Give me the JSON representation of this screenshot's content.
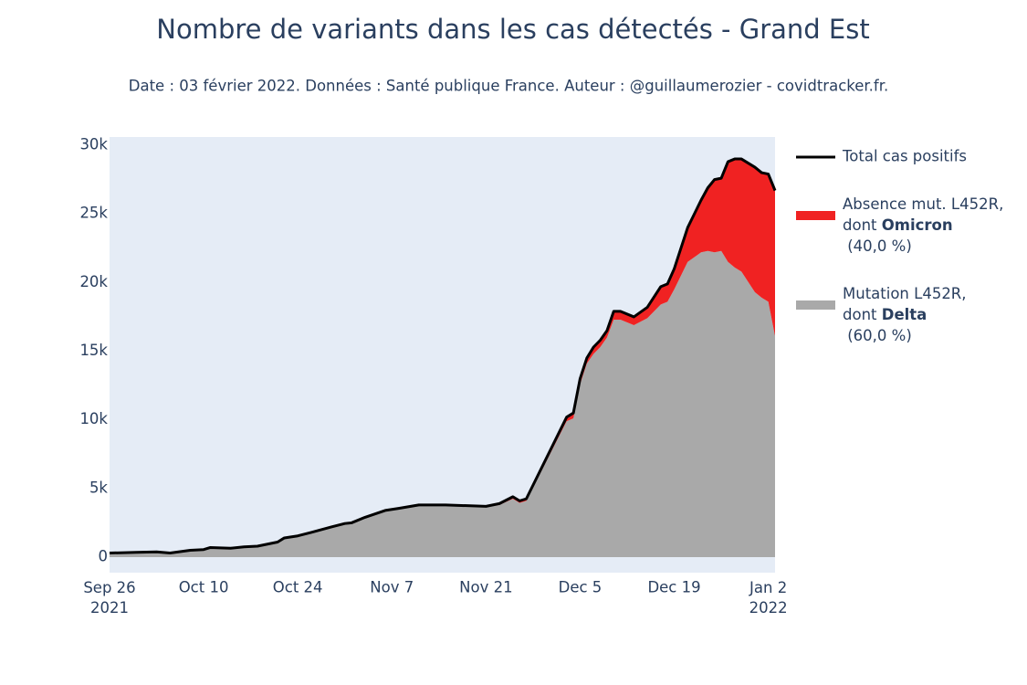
{
  "chart_data": {
    "type": "area",
    "title": "Nombre de variants dans les cas détectés - Grand Est",
    "subtitle": "Date : 03 février 2022. Données : Santé publique France. Auteur : @guillaumerozier - covidtracker.fr.",
    "x": [
      "2021-09-26",
      "2021-09-30",
      "2021-10-03",
      "2021-10-05",
      "2021-10-08",
      "2021-10-10",
      "2021-10-11",
      "2021-10-14",
      "2021-10-16",
      "2021-10-18",
      "2021-10-21",
      "2021-10-22",
      "2021-10-24",
      "2021-10-26",
      "2021-10-29",
      "2021-10-31",
      "2021-11-01",
      "2021-11-03",
      "2021-11-06",
      "2021-11-08",
      "2021-11-11",
      "2021-11-15",
      "2021-11-21",
      "2021-11-23",
      "2021-11-25",
      "2021-11-26",
      "2021-11-27",
      "2021-12-03",
      "2021-12-04",
      "2021-12-05",
      "2021-12-06",
      "2021-12-07",
      "2021-12-08",
      "2021-12-09",
      "2021-12-10",
      "2021-12-11",
      "2021-12-13",
      "2021-12-15",
      "2021-12-17",
      "2021-12-18",
      "2021-12-19",
      "2021-12-21",
      "2021-12-23",
      "2021-12-24",
      "2021-12-25",
      "2021-12-26",
      "2021-12-27",
      "2021-12-28",
      "2021-12-29",
      "2021-12-31",
      "2022-01-01",
      "2022-01-02",
      "2022-01-03"
    ],
    "series": [
      {
        "name": "Total cas positifs",
        "type": "line",
        "color": "#000000",
        "values": [
          300,
          350,
          380,
          300,
          500,
          550,
          700,
          650,
          750,
          800,
          1100,
          1400,
          1550,
          1800,
          2200,
          2450,
          2500,
          2900,
          3400,
          3550,
          3800,
          3800,
          3700,
          3900,
          4400,
          4100,
          4250,
          10200,
          10500,
          13000,
          14500,
          15300,
          15800,
          16500,
          17900,
          17900,
          17500,
          18200,
          19700,
          19900,
          21000,
          24000,
          26000,
          26900,
          27500,
          27600,
          28800,
          29000,
          29000,
          28400,
          28000,
          27900,
          26700
        ]
      },
      {
        "name": "Absence mut. L452R,<br>dont <b>Omicron</b><br> (40,0 %)",
        "type": "area",
        "color": "#f02222",
        "values": [
          0,
          0,
          0,
          0,
          0,
          0,
          0,
          0,
          0,
          0,
          0,
          0,
          0,
          0,
          0,
          0,
          0,
          0,
          0,
          0,
          0,
          0,
          50,
          100,
          150,
          150,
          150,
          300,
          400,
          400,
          400,
          500,
          500,
          500,
          600,
          600,
          600,
          800,
          1300,
          1300,
          1500,
          2500,
          3800,
          4600,
          5300,
          5300,
          7300,
          7900,
          8200,
          9100,
          9100,
          9300,
          10600
        ]
      },
      {
        "name": "Mutation L452R,<br>dont <b>Delta</b><br> (60,0 %)",
        "type": "area",
        "color": "#a9a9a9",
        "values": [
          300,
          350,
          380,
          300,
          500,
          550,
          700,
          650,
          750,
          800,
          1100,
          1400,
          1550,
          1800,
          2200,
          2450,
          2500,
          2900,
          3400,
          3550,
          3800,
          3800,
          3650,
          3800,
          4250,
          3950,
          4100,
          9900,
          10100,
          12600,
          14100,
          14800,
          15300,
          16000,
          17300,
          17300,
          16900,
          17400,
          18400,
          18600,
          19500,
          21500,
          22200,
          22300,
          22200,
          22300,
          21500,
          21100,
          20800,
          19300,
          18900,
          18600,
          16100
        ]
      }
    ],
    "xlim": [
      "2021-09-26",
      "2022-01-03"
    ],
    "xticks": [
      {
        "value": "2021-09-26",
        "label": "Sep 26<br>2021"
      },
      {
        "value": "2021-10-10",
        "label": "Oct 10"
      },
      {
        "value": "2021-10-24",
        "label": "Oct 24"
      },
      {
        "value": "2021-11-07",
        "label": "Nov 7"
      },
      {
        "value": "2021-11-21",
        "label": "Nov 21"
      },
      {
        "value": "2021-12-05",
        "label": "Dec 5"
      },
      {
        "value": "2021-12-19",
        "label": "Dec 19"
      },
      {
        "value": "2022-01-02",
        "label": "Jan 2<br>2022"
      }
    ],
    "ylim": [
      -1130,
      30600
    ],
    "yticks": [
      0,
      {
        "value": 5000,
        "label": "5k"
      },
      {
        "value": 10000,
        "label": "10k"
      },
      {
        "value": 15000,
        "label": "15k"
      },
      {
        "value": 20000,
        "label": "20k"
      },
      {
        "value": 25000,
        "label": "25k"
      },
      {
        "value": 30000,
        "label": "30k"
      }
    ],
    "grid": true,
    "legend": "right"
  }
}
